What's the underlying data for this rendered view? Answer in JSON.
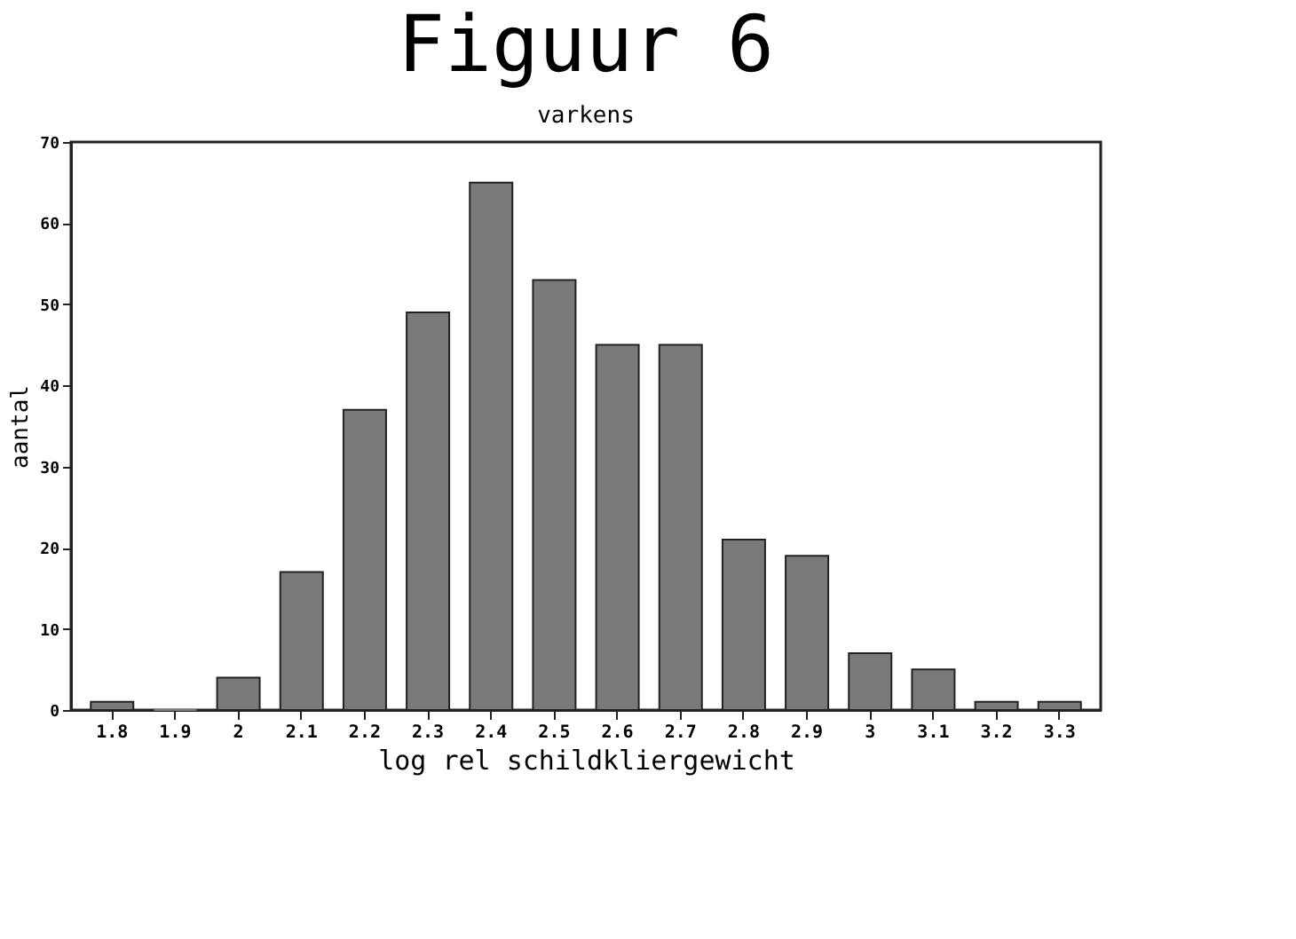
{
  "chart_data": {
    "type": "bar",
    "title": "Figuur 6",
    "subtitle": "varkens",
    "xlabel": "log rel schildkliergewicht",
    "ylabel": "aantal",
    "categories": [
      "1.8",
      "1.9",
      "2",
      "2.1",
      "2.2",
      "2.3",
      "2.4",
      "2.5",
      "2.6",
      "2.7",
      "2.8",
      "2.9",
      "3",
      "3.1",
      "3.2",
      "3.3"
    ],
    "values": [
      1,
      0,
      4,
      17,
      37,
      49,
      65,
      53,
      45,
      45,
      21,
      19,
      7,
      5,
      1,
      1
    ],
    "color": "#7a7a7a",
    "ylim": [
      0,
      70
    ],
    "yticks": [
      0,
      10,
      20,
      30,
      40,
      50,
      60,
      70
    ],
    "grid": false
  }
}
